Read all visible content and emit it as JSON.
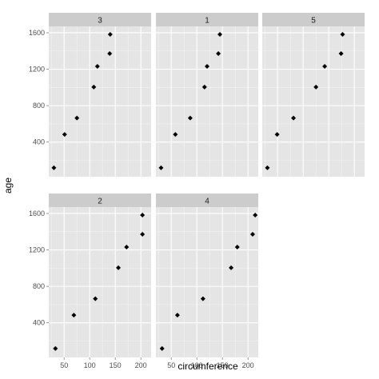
{
  "chart_data": {
    "type": "scatter",
    "xlabel": "circumference",
    "ylabel": "age",
    "xlim": [
      20,
      220
    ],
    "ylim": [
      20,
      1670
    ],
    "x_ticks": [
      50,
      100,
      150,
      200
    ],
    "y_ticks": [
      400,
      800,
      1200,
      1600
    ],
    "grid": true,
    "facets": [
      {
        "label": "3",
        "x": [
          30,
          51,
          75,
          108,
          115,
          139,
          140
        ],
        "y": [
          118,
          484,
          664,
          1004,
          1231,
          1372,
          1582
        ]
      },
      {
        "label": "1",
        "x": [
          30,
          58,
          87,
          115,
          120,
          142,
          145
        ],
        "y": [
          118,
          484,
          664,
          1004,
          1231,
          1372,
          1582
        ]
      },
      {
        "label": "5",
        "x": [
          30,
          49,
          81,
          125,
          142,
          174,
          177
        ],
        "y": [
          118,
          484,
          664,
          1004,
          1231,
          1372,
          1582
        ]
      },
      {
        "label": "2",
        "x": [
          33,
          69,
          111,
          156,
          172,
          203,
          203
        ],
        "y": [
          118,
          484,
          664,
          1004,
          1231,
          1372,
          1582
        ]
      },
      {
        "label": "4",
        "x": [
          32,
          62,
          112,
          167,
          179,
          209,
          214
        ],
        "y": [
          118,
          484,
          664,
          1004,
          1231,
          1372,
          1582
        ]
      }
    ]
  },
  "colors": {
    "panel_background": "#e5e5e5",
    "strip_background": "#cccccc",
    "grid_major": "#ffffff",
    "grid_minor": "#f2f2f2",
    "point": "#000000"
  }
}
